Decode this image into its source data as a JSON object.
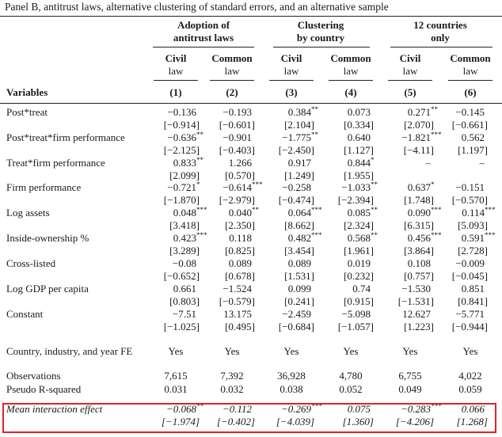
{
  "caption": "Panel B, antitrust laws, alternative clustering of standard errors, and an alternative sample",
  "groups": [
    {
      "l1": "Adoption of",
      "l2": "antitrust laws"
    },
    {
      "l1": "Clustering",
      "l2": "by country"
    },
    {
      "l1": "12 countries",
      "l2": "only"
    }
  ],
  "subheads": [
    {
      "l1": "Civil",
      "l2": "law"
    },
    {
      "l1": "Common",
      "l2": "law"
    },
    {
      "l1": "Civil",
      "l2": "law"
    },
    {
      "l1": "Common",
      "l2": "law"
    },
    {
      "l1": "Civil",
      "l2": "law"
    },
    {
      "l1": "Common",
      "l2": "law"
    }
  ],
  "variables_label": "Variables",
  "col_numbers": [
    "(1)",
    "(2)",
    "(3)",
    "(4)",
    "(5)",
    "(6)"
  ],
  "rows": [
    {
      "label": "Post*treat",
      "coef": [
        [
          "−0.136",
          ""
        ],
        [
          "−0.193",
          ""
        ],
        [
          "0.384",
          "**"
        ],
        [
          "0.073",
          ""
        ],
        [
          "0.271",
          "**"
        ],
        [
          "−0.145",
          ""
        ]
      ],
      "t": [
        "[−0.914]",
        "[−0.601]",
        "[2.104]",
        "[0.334]",
        "[2.070]",
        "[−0.661]"
      ]
    },
    {
      "label": "Post*treat*firm performance",
      "coef": [
        [
          "−0.636",
          "**"
        ],
        [
          "−0.901",
          ""
        ],
        [
          "−1.775",
          "**"
        ],
        [
          "0.640",
          ""
        ],
        [
          "−1.821",
          "***"
        ],
        [
          "0.562",
          ""
        ]
      ],
      "t": [
        "[−2.125]",
        "[−0.403]",
        "[−2.450]",
        "[1.127]",
        "[−4.11]",
        "[1.197]"
      ]
    },
    {
      "label": "Treat*firm performance",
      "coef": [
        [
          "0.833",
          "**"
        ],
        [
          "1.266",
          ""
        ],
        [
          "0.917",
          ""
        ],
        [
          "0.844",
          "*"
        ],
        [
          "–",
          ""
        ],
        [
          "–",
          ""
        ]
      ],
      "t": [
        "[2.099]",
        "[0.570]",
        "[1.249]",
        "[1.955]",
        "",
        ""
      ]
    },
    {
      "label": "Firm performance",
      "coef": [
        [
          "−0.721",
          "*"
        ],
        [
          "−0.614",
          "***"
        ],
        [
          "−0.258",
          ""
        ],
        [
          "−1.033",
          "**"
        ],
        [
          "0.637",
          "*"
        ],
        [
          "−0.151",
          ""
        ]
      ],
      "t": [
        "[−1.870]",
        "[−2.979]",
        "[−0.474]",
        "[−2.394]",
        "[1.748]",
        "[−0.570]"
      ]
    },
    {
      "label": "Log assets",
      "coef": [
        [
          "0.048",
          "***"
        ],
        [
          "0.040",
          "**"
        ],
        [
          "0.064",
          "***"
        ],
        [
          "0.085",
          "**"
        ],
        [
          "0.090",
          "***"
        ],
        [
          "0.114",
          "***"
        ]
      ],
      "t": [
        "[3.418]",
        "[2.350]",
        "[8.662]",
        "[2.324]",
        "[6.315]",
        "[5.093]"
      ]
    },
    {
      "label": "Inside-ownership %",
      "coef": [
        [
          "0.423",
          "***"
        ],
        [
          "0.118",
          ""
        ],
        [
          "0.482",
          "***"
        ],
        [
          "0.568",
          "**"
        ],
        [
          "0.456",
          "***"
        ],
        [
          "0.591",
          "***"
        ]
      ],
      "t": [
        "[3.289]",
        "[0.825]",
        "[3.454]",
        "[1.961]",
        "[3.864]",
        "[2.728]"
      ]
    },
    {
      "label": "Cross-listed",
      "coef": [
        [
          "−0.08",
          ""
        ],
        [
          "0.089",
          ""
        ],
        [
          "0.089",
          ""
        ],
        [
          "0.019",
          ""
        ],
        [
          "0.108",
          ""
        ],
        [
          "−0.009",
          ""
        ]
      ],
      "t": [
        "[−0.652]",
        "[0.678]",
        "[1.531]",
        "[0.232]",
        "[0.757]",
        "[−0.045]"
      ]
    },
    {
      "label": "Log GDP per capita",
      "coef": [
        [
          "0.661",
          ""
        ],
        [
          "−1.524",
          ""
        ],
        [
          "0.099",
          ""
        ],
        [
          "0.74",
          ""
        ],
        [
          "−1.530",
          ""
        ],
        [
          "0.851",
          ""
        ]
      ],
      "t": [
        "[0.803]",
        "[−0.579]",
        "[0.241]",
        "[0.915]",
        "[−1.531]",
        "[0.841]"
      ]
    },
    {
      "label": "Constant",
      "coef": [
        [
          "−7.51",
          ""
        ],
        [
          "13.175",
          ""
        ],
        [
          "−2.459",
          ""
        ],
        [
          "−5.098",
          ""
        ],
        [
          "12.627",
          ""
        ],
        [
          "−5.771",
          ""
        ]
      ],
      "t": [
        "[−1.025]",
        "[0.495]",
        "[−0.684]",
        "[−1.057]",
        "[1.223]",
        "[−0.944]"
      ]
    }
  ],
  "fe": {
    "label": "Country, industry, and year FE",
    "values": [
      "Yes",
      "Yes",
      "Yes",
      "Yes",
      "Yes",
      "Yes"
    ]
  },
  "observations": {
    "label": "Observations",
    "values": [
      "7,615",
      "7,392",
      "36,928",
      "4,780",
      "6,755",
      "4,022"
    ]
  },
  "pseudo_r2": {
    "label": "Pseudo R-squared",
    "values": [
      "0.031",
      "0.032",
      "0.038",
      "0.052",
      "0.049",
      "0.059"
    ]
  },
  "mie": {
    "label": "Mean interaction effect",
    "coef": [
      [
        "−0.068",
        "**"
      ],
      [
        "−0.112",
        ""
      ],
      [
        "−0.269",
        "***"
      ],
      [
        "0.075",
        ""
      ],
      [
        "−0.283",
        "***"
      ],
      [
        "0.066",
        ""
      ]
    ],
    "t": [
      "[−1.974]",
      "[−0.402]",
      "[−4.039]",
      "[1.360]",
      "[−4.206]",
      "[1.268]"
    ]
  },
  "highlight_color": "#e02424"
}
